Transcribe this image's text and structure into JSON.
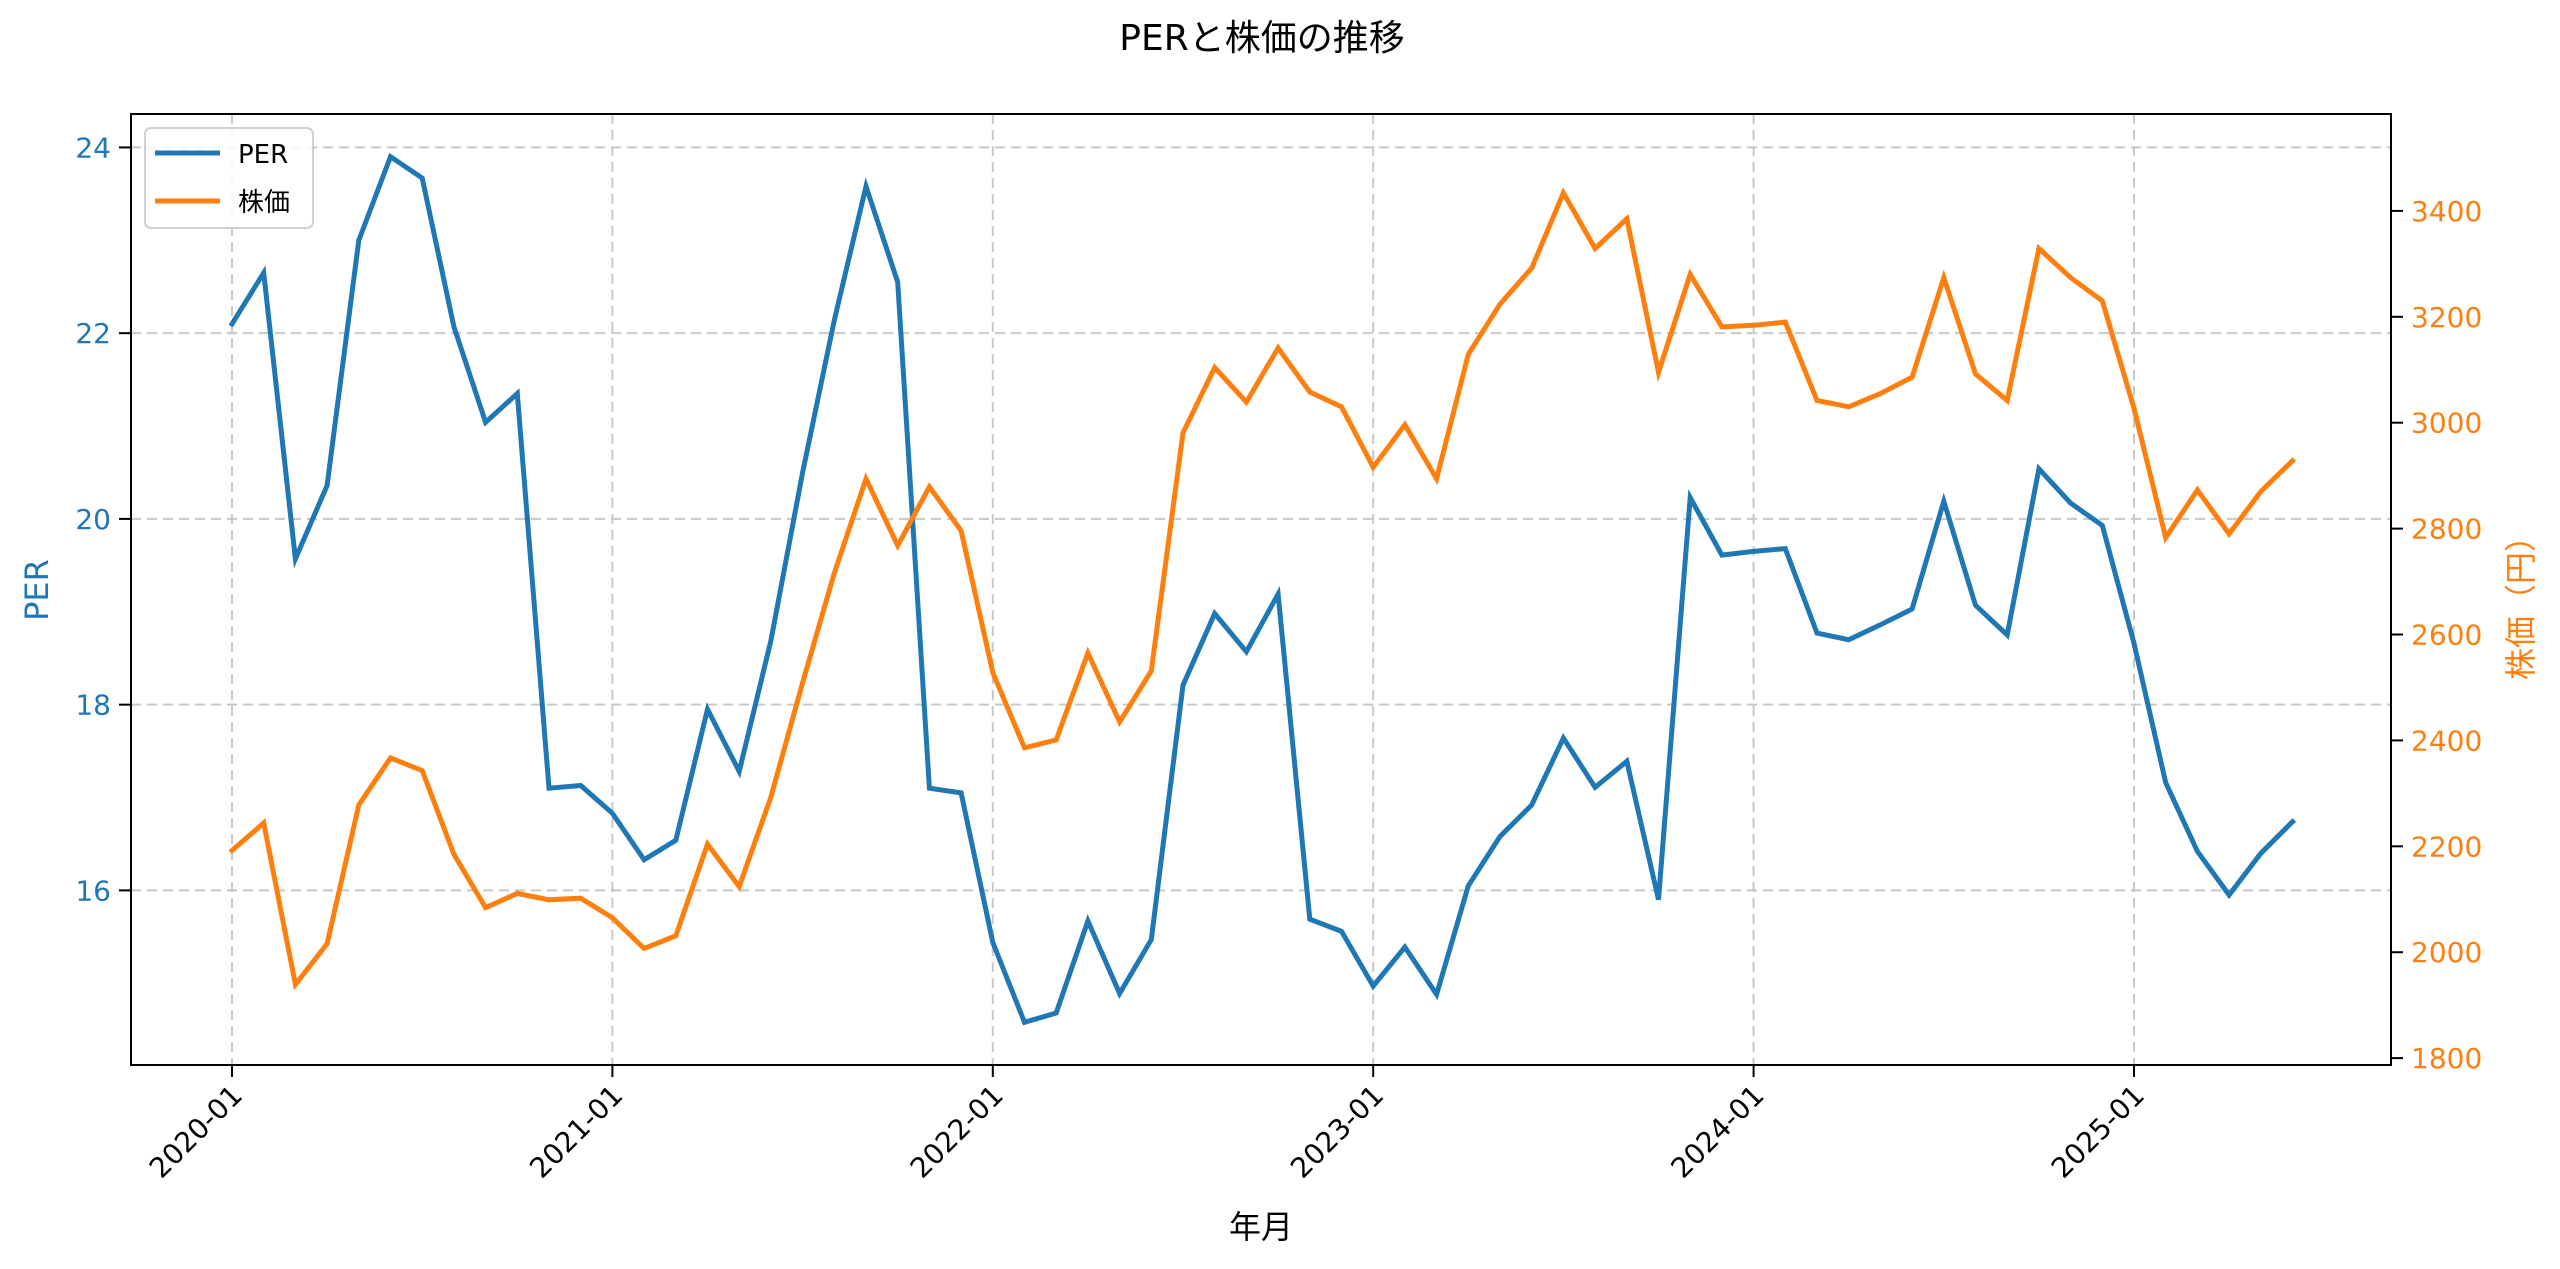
{
  "chart_data": {
    "type": "line",
    "title": "PERと株価の推移",
    "xlabel": "年月",
    "ylabel_left": "PER",
    "ylabel_right": "株価（円）",
    "x_tick_labels": [
      "2020-01",
      "2021-01",
      "2022-01",
      "2023-01",
      "2024-01",
      "2025-01"
    ],
    "y_left_ticks": [
      16,
      18,
      20,
      22,
      24
    ],
    "y_right_ticks": [
      1800,
      2000,
      2200,
      2400,
      2600,
      2800,
      3000,
      3200,
      3400
    ],
    "ylim_left": [
      14.12,
      24.36
    ],
    "ylim_right": [
      1787,
      3583
    ],
    "grid": true,
    "legend_position": "upper left",
    "x": [
      "2020-01",
      "2020-02",
      "2020-03",
      "2020-04",
      "2020-05",
      "2020-06",
      "2020-07",
      "2020-08",
      "2020-09",
      "2020-10",
      "2020-11",
      "2020-12",
      "2021-01",
      "2021-02",
      "2021-03",
      "2021-04",
      "2021-05",
      "2021-06",
      "2021-07",
      "2021-08",
      "2021-09",
      "2021-10",
      "2021-11",
      "2021-12",
      "2022-01",
      "2022-02",
      "2022-03",
      "2022-04",
      "2022-05",
      "2022-06",
      "2022-07",
      "2022-08",
      "2022-09",
      "2022-10",
      "2022-11",
      "2022-12",
      "2023-01",
      "2023-02",
      "2023-03",
      "2023-04",
      "2023-05",
      "2023-06",
      "2023-07",
      "2023-08",
      "2023-09",
      "2023-10",
      "2023-11",
      "2023-12",
      "2024-01",
      "2024-02",
      "2024-03",
      "2024-04",
      "2024-05",
      "2024-06",
      "2024-07",
      "2024-08",
      "2024-09",
      "2024-10",
      "2024-11",
      "2024-12",
      "2025-01",
      "2025-02",
      "2025-03",
      "2025-04",
      "2025-05",
      "2025-06"
    ],
    "series": [
      {
        "name": "PER",
        "axis": "left",
        "color": "#1f77b4",
        "values": [
          22.1,
          22.65,
          19.57,
          20.36,
          23.0,
          23.9,
          23.67,
          22.07,
          21.04,
          21.35,
          17.1,
          17.13,
          16.83,
          16.33,
          16.54,
          17.95,
          17.28,
          18.69,
          20.5,
          22.14,
          23.58,
          22.55,
          17.1,
          17.05,
          15.44,
          14.58,
          14.68,
          15.67,
          14.89,
          15.47,
          18.21,
          18.98,
          18.57,
          19.19,
          15.69,
          15.56,
          14.97,
          15.39,
          14.88,
          16.05,
          16.58,
          16.92,
          17.64,
          17.11,
          17.39,
          15.9,
          20.23,
          19.61,
          19.65,
          19.68,
          18.77,
          18.7,
          18.86,
          19.03,
          20.19,
          19.07,
          18.75,
          20.54,
          20.17,
          19.93,
          18.66,
          17.16,
          16.42,
          15.95,
          16.4,
          16.74
        ]
      },
      {
        "name": "株価",
        "axis": "right",
        "color": "#ff7f0e",
        "values": [
          2192,
          2244,
          1939,
          2016,
          2278,
          2367,
          2343,
          2185,
          2084,
          2111,
          2099,
          2102,
          2065,
          2007,
          2031,
          2204,
          2124,
          2293,
          2509,
          2716,
          2894,
          2768,
          2879,
          2796,
          2528,
          2386,
          2401,
          2565,
          2435,
          2531,
          2981,
          3104,
          3039,
          3141,
          3058,
          3030,
          2916,
          2996,
          2894,
          3129,
          3224,
          3292,
          3434,
          3329,
          3385,
          3095,
          3280,
          3181,
          3184,
          3190,
          3042,
          3030,
          3055,
          3086,
          3274,
          3092,
          3042,
          3329,
          3274,
          3230,
          3027,
          2783,
          2873,
          2790,
          2870,
          2928
        ]
      }
    ]
  },
  "legend": {
    "items": [
      {
        "label": "PER",
        "color": "#1f77b4"
      },
      {
        "label": "株価",
        "color": "#ff7f0e"
      }
    ]
  },
  "colors": {
    "left_axis": "#1f77b4",
    "right_axis": "#ff7f0e",
    "grid": "#c8c8c8",
    "frame": "#000000"
  }
}
